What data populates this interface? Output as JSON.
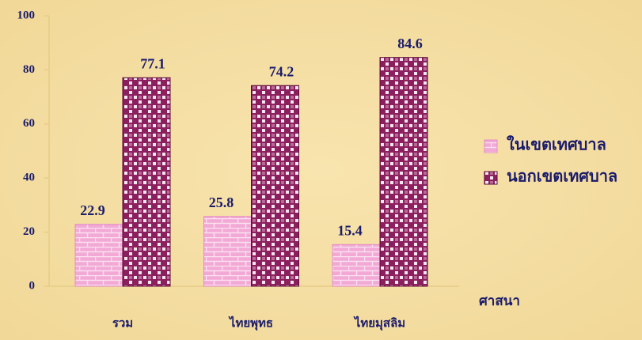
{
  "chart_data": {
    "type": "bar",
    "categories": [
      "รวม",
      "ไทยพุทธ",
      "ไทยมุสลิม"
    ],
    "series": [
      {
        "name": "ในเขตเทศบาล",
        "color": "#f2a9d6",
        "values": [
          22.9,
          25.8,
          15.4
        ]
      },
      {
        "name": "นอกเขตเทศบาล",
        "color": "#8c1f5d",
        "values": [
          77.1,
          74.2,
          84.6
        ]
      }
    ],
    "x_label": "ศาสนา",
    "ylim": [
      0,
      100
    ],
    "yticks": [
      0,
      20,
      40,
      60,
      80,
      100
    ],
    "legend": "right"
  }
}
